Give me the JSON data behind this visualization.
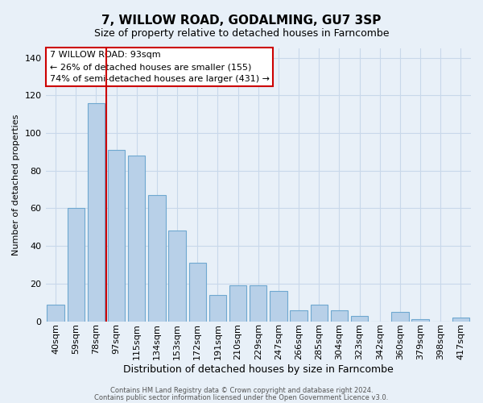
{
  "title": "7, WILLOW ROAD, GODALMING, GU7 3SP",
  "subtitle": "Size of property relative to detached houses in Farncombe",
  "xlabel": "Distribution of detached houses by size in Farncombe",
  "ylabel": "Number of detached properties",
  "footer_line1": "Contains HM Land Registry data © Crown copyright and database right 2024.",
  "footer_line2": "Contains public sector information licensed under the Open Government Licence v3.0.",
  "bar_labels": [
    "40sqm",
    "59sqm",
    "78sqm",
    "97sqm",
    "115sqm",
    "134sqm",
    "153sqm",
    "172sqm",
    "191sqm",
    "210sqm",
    "229sqm",
    "247sqm",
    "266sqm",
    "285sqm",
    "304sqm",
    "323sqm",
    "342sqm",
    "360sqm",
    "379sqm",
    "398sqm",
    "417sqm"
  ],
  "bar_values": [
    9,
    60,
    116,
    91,
    88,
    67,
    48,
    31,
    14,
    19,
    19,
    16,
    6,
    9,
    6,
    3,
    0,
    5,
    1,
    0,
    2
  ],
  "bar_color": "#b8d0e8",
  "bar_edge_color": "#6fa8d0",
  "vline_x_index": 2,
  "vline_color": "#cc0000",
  "ylim": [
    0,
    145
  ],
  "yticks": [
    0,
    20,
    40,
    60,
    80,
    100,
    120,
    140
  ],
  "annotation_line1": "7 WILLOW ROAD: 93sqm",
  "annotation_line2": "← 26% of detached houses are smaller (155)",
  "annotation_line3": "74% of semi-detached houses are larger (431) →",
  "annotation_box_color": "#ffffff",
  "annotation_box_edge_color": "#cc0000",
  "grid_color": "#c8d8ea",
  "background_color": "#e8f0f8",
  "title_fontsize": 11,
  "subtitle_fontsize": 9,
  "xlabel_fontsize": 9,
  "ylabel_fontsize": 8,
  "tick_fontsize": 8,
  "annotation_fontsize": 8,
  "footer_fontsize": 6
}
